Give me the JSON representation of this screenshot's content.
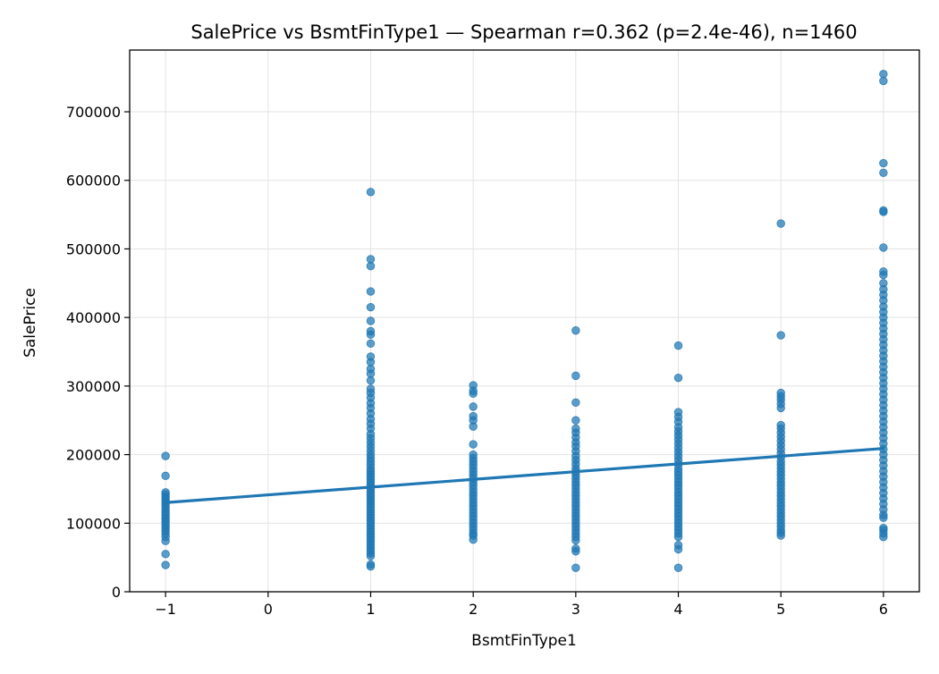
{
  "chart_data": {
    "type": "scatter",
    "title": "SalePrice vs BsmtFinType1 — Spearman r=0.362 (p=2.4e-46), n=1460",
    "xlabel": "BsmtFinType1",
    "ylabel": "SalePrice",
    "xlim": [
      -1.35,
      6.35
    ],
    "ylim": [
      0,
      790000
    ],
    "xticks": [
      -1,
      0,
      1,
      2,
      3,
      4,
      5,
      6
    ],
    "xtick_labels": [
      "−1",
      "0",
      "1",
      "2",
      "3",
      "4",
      "5",
      "6"
    ],
    "yticks": [
      0,
      100000,
      200000,
      300000,
      400000,
      500000,
      600000,
      700000
    ],
    "ytick_labels": [
      "0",
      "100000",
      "200000",
      "300000",
      "400000",
      "500000",
      "600000",
      "700000"
    ],
    "grid": true,
    "point_color": "#1f77b4",
    "line_color": "#1f77b4",
    "series": [
      {
        "kind": "scatter",
        "groups": [
          {
            "x": -1,
            "y": [
              198000,
              169000,
              145000,
              142000,
              138000,
              135000,
              131000,
              128000,
              124000,
              120000,
              116000,
              112000,
              108000,
              105000,
              101000,
              97000,
              93000,
              89000,
              85000,
              80000,
              74000,
              55000,
              39000
            ]
          },
          {
            "x": 1,
            "y": [
              583000,
              485000,
              475000,
              438000,
              415000,
              395000,
              380000,
              375000,
              362000,
              343000,
              335000,
              325000,
              318000,
              308000,
              296000,
              290000,
              283000,
              275000,
              268000,
              260000,
              252000,
              245000,
              238000,
              230000,
              224000,
              218000,
              212000,
              206000,
              200000,
              195000,
              190000,
              185000,
              180000,
              176000,
              172000,
              168000,
              164000,
              160000,
              156000,
              152000,
              148000,
              144000,
              140000,
              136000,
              132000,
              128000,
              124000,
              120000,
              116000,
              112000,
              108000,
              104000,
              100000,
              96000,
              92000,
              88000,
              84000,
              80000,
              76000,
              72000,
              68000,
              64000,
              60000,
              56000,
              52000,
              40000,
              37000
            ]
          },
          {
            "x": 2,
            "y": [
              301000,
              293000,
              289000,
              270000,
              256000,
              250000,
              241000,
              215000,
              200000,
              195000,
              190000,
              185000,
              180000,
              175000,
              170000,
              165000,
              160000,
              155000,
              150000,
              145000,
              140000,
              135000,
              130000,
              125000,
              120000,
              115000,
              110000,
              105000,
              100000,
              95000,
              90000,
              85000,
              82000,
              76000
            ]
          },
          {
            "x": 3,
            "y": [
              381000,
              315000,
              276000,
              250000,
              238000,
              232000,
              225000,
              218000,
              212000,
              205000,
              198000,
              192000,
              186000,
              180000,
              175000,
              170000,
              165000,
              160000,
              155000,
              150000,
              145000,
              140000,
              135000,
              130000,
              125000,
              120000,
              115000,
              110000,
              105000,
              100000,
              95000,
              90000,
              85000,
              80000,
              75000,
              63000,
              59000,
              35000
            ]
          },
          {
            "x": 4,
            "y": [
              359000,
              312000,
              262000,
              255000,
              248000,
              240000,
              234000,
              228000,
              222000,
              216000,
              210000,
              204000,
              198000,
              192000,
              186000,
              180000,
              175000,
              170000,
              165000,
              160000,
              155000,
              150000,
              145000,
              140000,
              135000,
              130000,
              125000,
              120000,
              115000,
              110000,
              105000,
              100000,
              95000,
              90000,
              85000,
              80000,
              68000,
              62000,
              35000
            ]
          },
          {
            "x": 5,
            "y": [
              537000,
              374000,
              290000,
              285000,
              280000,
              274000,
              268000,
              243000,
              238000,
              232000,
              226000,
              220000,
              214000,
              208000,
              202000,
              196000,
              190000,
              185000,
              180000,
              175000,
              170000,
              165000,
              160000,
              155000,
              150000,
              145000,
              140000,
              135000,
              130000,
              125000,
              120000,
              115000,
              110000,
              105000,
              100000,
              95000,
              90000,
              86000,
              82000
            ]
          },
          {
            "x": 6,
            "y": [
              755000,
              745000,
              625000,
              611000,
              556000,
              554000,
              502000,
              467000,
              462000,
              450000,
              441000,
              433000,
              425000,
              416000,
              408000,
              400000,
              392000,
              384000,
              376000,
              368000,
              360000,
              352000,
              344000,
              336000,
              328000,
              320000,
              312000,
              304000,
              296000,
              288000,
              280000,
              272000,
              264000,
              256000,
              248000,
              240000,
              232000,
              224000,
              216000,
              208000,
              200000,
              192000,
              184000,
              176000,
              168000,
              160000,
              152000,
              144000,
              136000,
              128000,
              120000,
              112000,
              108000,
              93000,
              90000,
              85000,
              80000
            ]
          }
        ]
      },
      {
        "kind": "line",
        "x": [
          -1,
          6
        ],
        "y": [
          130000,
          209000
        ]
      }
    ]
  }
}
